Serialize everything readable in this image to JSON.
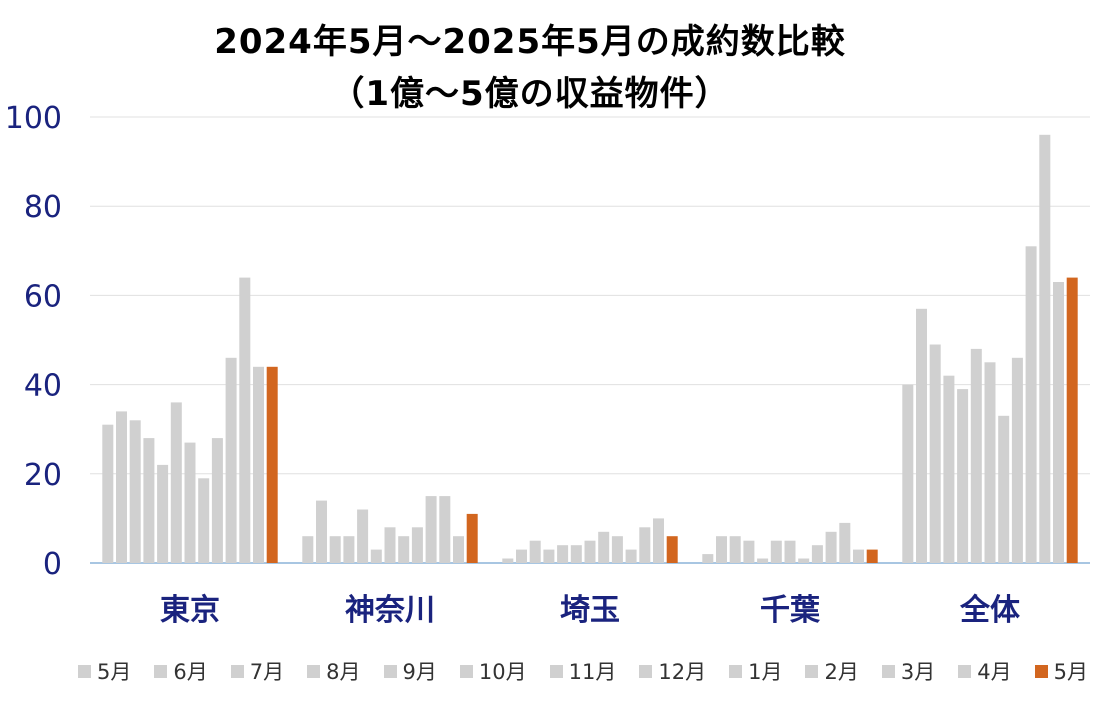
{
  "chart_data": {
    "type": "bar",
    "title": "2024年5月～2025年5月の成約数比較",
    "subtitle": "（1億～5億の収益物件）",
    "categories": [
      "東京",
      "神奈川",
      "埼玉",
      "千葉",
      "全体"
    ],
    "ylim": [
      0,
      100
    ],
    "yticks": [
      0,
      20,
      40,
      60,
      80,
      100
    ],
    "grid": true,
    "legend_position": "bottom",
    "colors": {
      "past": "#d0d0d0",
      "current": "#d2661f",
      "gridline": "#e0e0e0",
      "axis": "#8cb4d8",
      "tick_text": "#1a237e"
    },
    "series": [
      {
        "name": "5月",
        "values": [
          31,
          6,
          1,
          2,
          40
        ]
      },
      {
        "name": "6月",
        "values": [
          34,
          14,
          3,
          6,
          57
        ]
      },
      {
        "name": "7月",
        "values": [
          32,
          6,
          5,
          6,
          49
        ]
      },
      {
        "name": "8月",
        "values": [
          28,
          6,
          3,
          5,
          42
        ]
      },
      {
        "name": "9月",
        "values": [
          22,
          12,
          4,
          1,
          39
        ]
      },
      {
        "name": "10月",
        "values": [
          36,
          3,
          4,
          5,
          48
        ]
      },
      {
        "name": "11月",
        "values": [
          27,
          8,
          5,
          5,
          45
        ]
      },
      {
        "name": "12月",
        "values": [
          19,
          6,
          7,
          1,
          33
        ]
      },
      {
        "name": "1月",
        "values": [
          28,
          8,
          6,
          4,
          46
        ]
      },
      {
        "name": "2月",
        "values": [
          46,
          15,
          3,
          7,
          71
        ]
      },
      {
        "name": "3月",
        "values": [
          64,
          15,
          8,
          9,
          96
        ]
      },
      {
        "name": "4月",
        "values": [
          44,
          6,
          10,
          3,
          63
        ]
      },
      {
        "name": "5月",
        "values": [
          44,
          11,
          6,
          3,
          64
        ]
      }
    ]
  }
}
